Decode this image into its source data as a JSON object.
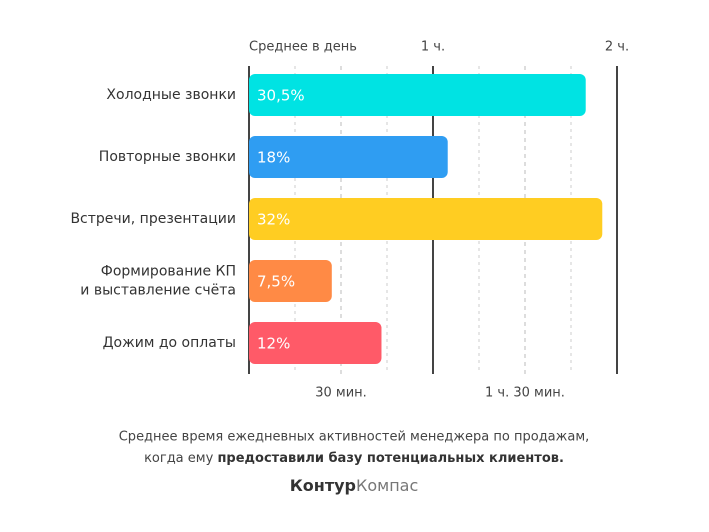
{
  "chart_data": {
    "type": "hbar",
    "axis_label": "Среднее в день",
    "categories": [
      [
        "Холодные звонки"
      ],
      [
        "Повторные звонки"
      ],
      [
        "Встречи, презентации"
      ],
      [
        "Формирование КП",
        "и выставление счёта"
      ],
      [
        "Дожим до оплаты"
      ]
    ],
    "values": [
      109.8,
      64.8,
      115.2,
      27,
      43.2
    ],
    "value_labels": [
      "30,5%",
      "18%",
      "32%",
      "7,5%",
      "12%"
    ],
    "colors": [
      "#00e3e3",
      "#2f9df2",
      "#ffcd22",
      "#ff8a45",
      "#ff5a68"
    ],
    "xlim": [
      0,
      120
    ],
    "major_ticks": [
      {
        "value": 60,
        "label": "1 ч."
      },
      {
        "value": 120,
        "label": "2 ч."
      }
    ],
    "half_ticks": [
      {
        "value": 30,
        "label": "30 мин."
      },
      {
        "value": 90,
        "label": "1 ч. 30 мин."
      }
    ],
    "minor_ticks": [
      15,
      45,
      75,
      105
    ],
    "caption": {
      "line1": "Среднее время ежедневных активностей менеджера по продажам,",
      "line2_start": "когда ему",
      "line2_bold": "предоставили базу потенциальных клиентов."
    },
    "logo": {
      "bold": "Контур",
      "light": "Компас"
    }
  }
}
